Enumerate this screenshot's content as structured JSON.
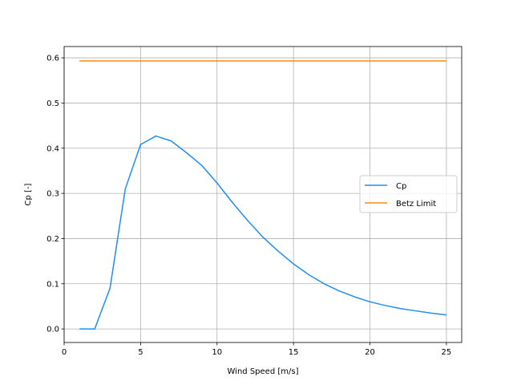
{
  "chart_data": {
    "type": "line",
    "title": "",
    "xlabel": "Wind Speed [m/s]",
    "ylabel": "Cp [-]",
    "xlim": [
      0,
      26
    ],
    "ylim": [
      -0.03,
      0.625
    ],
    "xticks": [
      0,
      5,
      10,
      15,
      20,
      25
    ],
    "xtick_labels": [
      "0",
      "5",
      "10",
      "15",
      "20",
      "25"
    ],
    "yticks": [
      0.0,
      0.1,
      0.2,
      0.3,
      0.4,
      0.5,
      0.6
    ],
    "ytick_labels": [
      "0.0",
      "0.1",
      "0.2",
      "0.3",
      "0.4",
      "0.5",
      "0.6"
    ],
    "grid": true,
    "legend_position": "center-right",
    "series": [
      {
        "name": "Cp",
        "color": "#1f8ff0",
        "x": [
          1,
          2,
          3,
          4,
          5,
          6,
          7,
          8,
          9,
          10,
          11,
          12,
          13,
          14,
          15,
          16,
          17,
          18,
          19,
          20,
          21,
          22,
          23,
          24,
          25
        ],
        "y": [
          0.0,
          0.0,
          0.09,
          0.31,
          0.408,
          0.427,
          0.416,
          0.39,
          0.362,
          0.323,
          0.28,
          0.24,
          0.203,
          0.172,
          0.144,
          0.12,
          0.1,
          0.084,
          0.071,
          0.06,
          0.052,
          0.045,
          0.04,
          0.035,
          0.031
        ]
      },
      {
        "name": "Betz Limit",
        "color": "#ff8c00",
        "x": [
          1,
          25
        ],
        "y": [
          0.593,
          0.593
        ]
      }
    ]
  }
}
